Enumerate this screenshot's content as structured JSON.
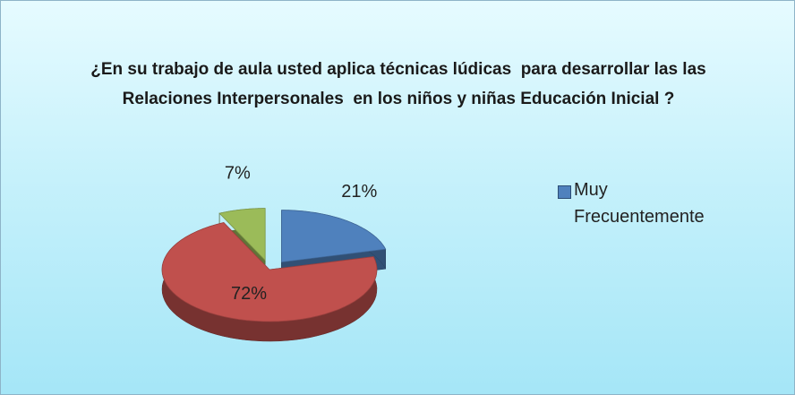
{
  "chart_data": {
    "type": "pie",
    "title": "¿En su trabajo de aula usted aplica técnicas lúdicas  para desarrollar las las Relaciones Interpersonales  en los niños y niñas Educación Inicial ?",
    "categories": [
      "Muy Frecuentemente",
      null,
      null
    ],
    "values": [
      21,
      72,
      7
    ],
    "value_labels": [
      "21%",
      "72%",
      "7%"
    ],
    "colors": [
      "#4f81bd",
      "#c0504d",
      "#9bbb59"
    ],
    "legend": "right"
  }
}
